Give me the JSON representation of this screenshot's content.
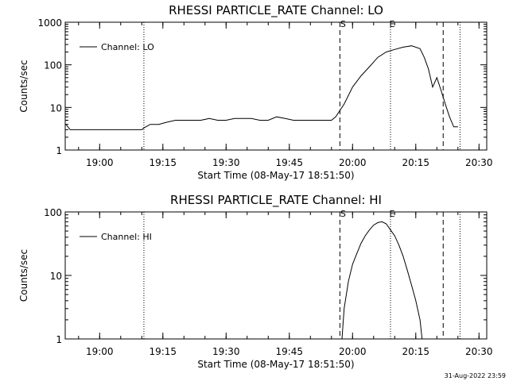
{
  "chart_data": [
    {
      "type": "line",
      "title": "RHESSI PARTICLE_RATE Channel: LO",
      "xlabel": "Start Time (08-May-17 18:51:50)",
      "ylabel": "Counts/sec",
      "yscale": "log",
      "ylim": [
        1,
        1000
      ],
      "xlim": [
        "18:51:50",
        "20:31:50"
      ],
      "x_ticks": [
        "19:00",
        "19:15",
        "19:30",
        "19:45",
        "20:00",
        "20:15",
        "20:30"
      ],
      "y_ticks": [
        "1",
        "10",
        "100",
        "1000"
      ],
      "legend": {
        "position": "top-left",
        "entries": [
          "Channel: LO"
        ]
      },
      "series": [
        {
          "name": "Channel: LO",
          "color": "#000000",
          "x": [
            "18:52",
            "18:53",
            "18:54",
            "18:56",
            "18:58",
            "19:00",
            "19:02",
            "19:04",
            "19:06",
            "19:08",
            "19:10",
            "19:10:30",
            "19:12",
            "19:14",
            "19:16",
            "19:18",
            "19:20",
            "19:22",
            "19:24",
            "19:26",
            "19:28",
            "19:30",
            "19:32",
            "19:34",
            "19:36",
            "19:38",
            "19:40",
            "19:42",
            "19:44",
            "19:46",
            "19:48",
            "19:50",
            "19:52",
            "19:54",
            "19:55",
            "19:56",
            "19:58",
            "20:00",
            "20:02",
            "20:04",
            "20:06",
            "20:08",
            "20:10",
            "20:12",
            "20:14",
            "20:16",
            "20:17",
            "20:18",
            "20:19",
            "20:20",
            "20:21",
            "20:22",
            "20:23",
            "20:24",
            "20:25"
          ],
          "y": [
            4,
            3,
            3,
            3,
            3,
            3,
            3,
            3,
            3,
            3,
            3,
            3.3,
            4,
            4,
            4.5,
            5,
            5,
            5,
            5,
            5.5,
            5,
            5,
            5.5,
            5.5,
            5.5,
            5,
            5,
            6,
            5.5,
            5,
            5,
            5,
            5,
            5,
            5,
            6,
            12,
            30,
            55,
            90,
            150,
            200,
            230,
            260,
            280,
            240,
            150,
            80,
            30,
            50,
            25,
            12,
            6,
            3.5,
            3.5
          ]
        }
      ],
      "annotations": [
        "S",
        "E"
      ]
    },
    {
      "type": "line",
      "title": "RHESSI PARTICLE_RATE Channel: HI",
      "xlabel": "Start Time (08-May-17 18:51:50)",
      "ylabel": "Counts/sec",
      "yscale": "log",
      "ylim": [
        1,
        100
      ],
      "xlim": [
        "18:51:50",
        "20:31:50"
      ],
      "x_ticks": [
        "19:00",
        "19:15",
        "19:30",
        "19:45",
        "20:00",
        "20:15",
        "20:30"
      ],
      "y_ticks": [
        "1",
        "10",
        "100"
      ],
      "legend": {
        "position": "top-left",
        "entries": [
          "Channel: HI"
        ]
      },
      "series": [
        {
          "name": "Channel: HI",
          "color": "#000000",
          "x": [
            "19:57:30",
            "19:58",
            "19:59",
            "20:00",
            "20:01",
            "20:02",
            "20:03",
            "20:04",
            "20:05",
            "20:06",
            "20:07",
            "20:08",
            "20:09",
            "20:10",
            "20:11",
            "20:12",
            "20:13",
            "20:14",
            "20:15",
            "20:16",
            "20:16:30"
          ],
          "y": [
            1,
            3,
            8,
            15,
            22,
            32,
            42,
            52,
            62,
            68,
            70,
            65,
            52,
            42,
            30,
            20,
            12,
            7,
            4,
            2,
            1
          ]
        }
      ],
      "annotations": [
        "S",
        "E"
      ]
    }
  ],
  "footer": {
    "date_stamp": "31-Aug-2022 23:59"
  }
}
